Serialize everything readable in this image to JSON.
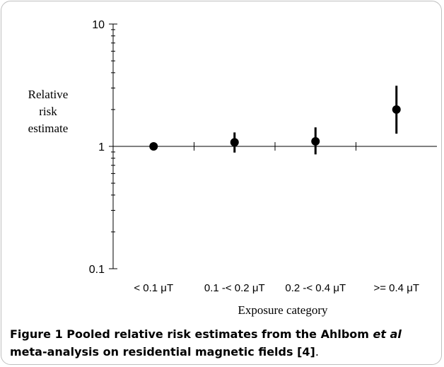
{
  "chart_data": {
    "type": "scatter",
    "title": "",
    "ylabel_lines": [
      "Relative",
      "risk",
      "estimate"
    ],
    "xlabel": "Exposure category",
    "yscale": "log",
    "ylim": [
      0.1,
      10
    ],
    "ytick_labels": [
      "10",
      "1",
      "0.1"
    ],
    "categories": [
      "< 0.1 μT",
      "0.1 -< 0.2 μT",
      "0.2 -< 0.4 μT",
      ">= 0.4 μT"
    ],
    "estimates": [
      1.0,
      1.08,
      1.1,
      2.0
    ],
    "ci_lower": [
      1.0,
      0.89,
      0.86,
      1.27
    ],
    "ci_upper": [
      1.0,
      1.3,
      1.43,
      3.13
    ],
    "reference_line": 1
  },
  "caption": {
    "label": "Figure 1",
    "text_before": " Pooled relative risk estimates from the Ahlbom ",
    "italic": "et al",
    "text_after": " meta-analysis on residential magnetic fields [4]",
    "period": "."
  }
}
